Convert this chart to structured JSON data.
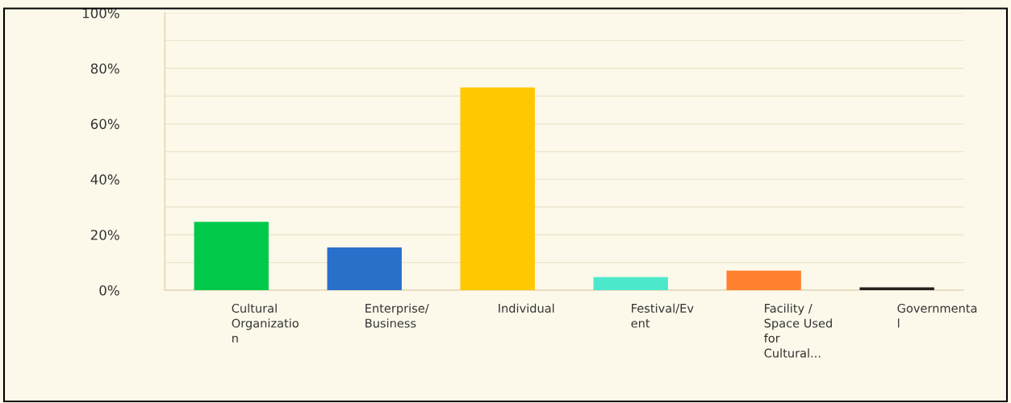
{
  "chart_data": {
    "type": "bar",
    "categories": [
      "Cultural\nOrganizatio\nn",
      "Enterprise/\nBusiness",
      "Individual",
      "Festival/Ev\nent",
      "Facility /\nSpace Used\nfor\nCultural...",
      "Governmenta\nl"
    ],
    "values": [
      24.4,
      15.2,
      72.9,
      4.5,
      6.8,
      0.8
    ],
    "colors": [
      "#00c94a",
      "#2a6fca",
      "#ffc800",
      "#4de8cc",
      "#ff8130",
      "#222222"
    ],
    "ylim": [
      0,
      100
    ],
    "yticks": [
      {
        "value": 0,
        "label": "0%"
      },
      {
        "value": 10,
        "label": null
      },
      {
        "value": 20,
        "label": "20%"
      },
      {
        "value": 30,
        "label": null
      },
      {
        "value": 40,
        "label": "40%"
      },
      {
        "value": 50,
        "label": null
      },
      {
        "value": 60,
        "label": "60%"
      },
      {
        "value": 70,
        "label": null
      },
      {
        "value": 80,
        "label": "80%"
      },
      {
        "value": 90,
        "label": null
      },
      {
        "value": 100,
        "label": "100%"
      }
    ],
    "grid": "y"
  }
}
